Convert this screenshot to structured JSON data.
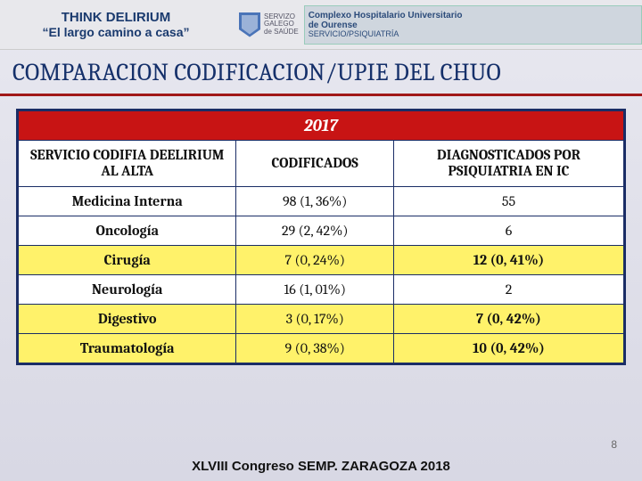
{
  "header": {
    "line1": "THINK DELIRIUM",
    "line2": "“El largo camino a casa”",
    "logo1": {
      "t1": "SERVIZO",
      "t2": "GALEGO",
      "t3": "de SAÚDE"
    },
    "banner": {
      "t1": "Complexo Hospitalario Universitario",
      "t2": "de Ourense",
      "t3": "SERVICIO/PSIQUIATRÍA"
    }
  },
  "title": "COMPARACION CODIFICACION/UPIE DEL CHUO",
  "table": {
    "year": "2017",
    "cols": {
      "c1": "SERVICIO CODIFIA DEELIRIUM AL ALTA",
      "c2": "CODIFICADOS",
      "c3": "DIAGNOSTICADOS POR PSIQUIATRIA EN IC"
    },
    "col_widths": [
      "36%",
      "26%",
      "38%"
    ],
    "rows": [
      {
        "svc": "Medicina Interna",
        "cod": "98 (1, 36%)",
        "dx": "55",
        "hl": false
      },
      {
        "svc": "Oncología",
        "cod": "29 (2, 42%)",
        "dx": "6",
        "hl": false
      },
      {
        "svc": "Cirugía",
        "cod": "7 (0, 24%)",
        "dx": "12 (0, 41%)",
        "hl": true
      },
      {
        "svc": "Neurología",
        "cod": "16 (1, 01%)",
        "dx": "2",
        "hl": false
      },
      {
        "svc": "Digestivo",
        "cod": "3 (0, 17%)",
        "dx": "7 (0, 42%)",
        "hl": true
      },
      {
        "svc": "Traumatología",
        "cod": "9 (0, 38%)",
        "dx": "10 (0, 42%)",
        "hl": true
      }
    ]
  },
  "footer": "XLVIII Congreso SEMP.  ZARAGOZA 2018",
  "page_no": "8",
  "colors": {
    "title_underline": "#a01818",
    "table_border": "#1a2d66",
    "year_bg": "#c81414",
    "highlight_bg": "#fff26a"
  }
}
